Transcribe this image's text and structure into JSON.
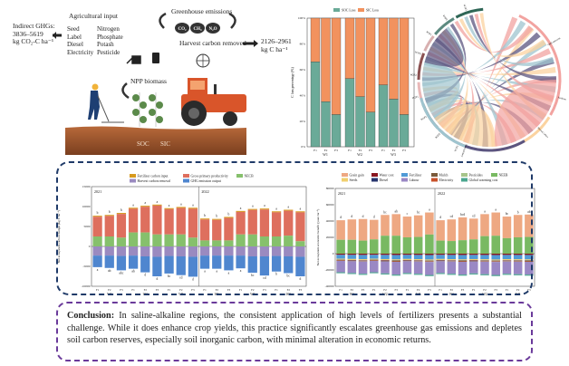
{
  "illustration": {
    "agri_input_title": "Agricultural input",
    "inputs_col1": [
      "Seed",
      "Label",
      "Diesel",
      "Electricity"
    ],
    "inputs_col2": [
      "Nitrogen",
      "Phosphate",
      "Potash",
      "Pesticide"
    ],
    "indirect_ghg": [
      "Indirect GHGs:",
      "3836–5619",
      "kg CO₂-C ha⁻¹"
    ],
    "greenhouse_title": "Greenhouse emissions",
    "gases": [
      "CO₂",
      "CH₄",
      "N₂O"
    ],
    "harvest_label": "Harvest carbon removed",
    "harvest_value": [
      "2126–2961",
      "kg C ha⁻¹"
    ],
    "npp_label": "NPP biomass",
    "soil_labels": [
      "SOC",
      "SIC"
    ],
    "colors": {
      "soil": "#a0572b",
      "tractor": "#d9552a",
      "leaf": "#5b8a4a",
      "farmer": "#1e3f73"
    }
  },
  "chart_data": [
    {
      "type": "bar",
      "stacked": "percent",
      "legend": [
        "SOC Loss",
        "SIC Loss"
      ],
      "legend_placement": "top",
      "ylabel": "C loss percentage (%)",
      "yticks": [
        "0%",
        "20%",
        "40%",
        "60%",
        "80%",
        "100%"
      ],
      "ylim": [
        0,
        100
      ],
      "groups": [
        "W1",
        "W2",
        "W3"
      ],
      "categories": [
        "F1",
        "F2",
        "F3"
      ],
      "series": [
        {
          "name": "SOC Loss",
          "color": "#6aaa98",
          "values": [
            [
              66,
              35,
              25
            ],
            [
              53,
              39,
              27
            ],
            [
              48,
              37,
              25
            ]
          ]
        },
        {
          "name": "SIC Loss",
          "color": "#f2925e",
          "values": [
            [
              34,
              65,
              75
            ],
            [
              47,
              61,
              73
            ],
            [
              52,
              63,
              75
            ]
          ]
        }
      ]
    },
    {
      "type": "bar",
      "stacked": true,
      "legend": [
        "Fertilizer carbon input",
        "Gross primary productivity",
        "NECB",
        "Harvest carbon removal",
        "GHG emission output"
      ],
      "legend_placement": "top",
      "ylabel": "Net ecosystem carbon budget (kg C ha⁻¹)",
      "yticks": [
        "-10000",
        "-5000",
        "0",
        "5000",
        "10000",
        "15000"
      ],
      "ylim": [
        -10000,
        15000
      ],
      "panels": [
        "2021",
        "2022"
      ],
      "groups": [
        "W1",
        "W2",
        "W3"
      ],
      "categories": [
        "F1",
        "F2",
        "F3"
      ],
      "colors": {
        "fert": "#d79a1e",
        "gpp": "#de6f5e",
        "necb": "#86c06c",
        "harvest": "#9a8ac0",
        "ghg": "#4f86cf"
      },
      "data": {
        "2021": {
          "positive": [
            7700,
            7900,
            8400,
            9700,
            10200,
            10500,
            9600,
            9900,
            9700
          ],
          "necb": [
            2500,
            2500,
            2200,
            3500,
            3500,
            3000,
            3000,
            3000,
            2200
          ],
          "harvest": [
            -2300,
            -2300,
            -2400,
            -2300,
            -2500,
            -2600,
            -2400,
            -2500,
            -2600
          ],
          "total_negative": [
            -5200,
            -5400,
            -6000,
            -5600,
            -6500,
            -7500,
            -6800,
            -7200,
            -7600
          ],
          "top_letters": [
            "b",
            "b",
            "b",
            "a",
            "a",
            "a",
            "a",
            "a",
            "a"
          ],
          "bottom_letters": [
            "a",
            "ab",
            "abc",
            "ab",
            "d",
            "d",
            "bc",
            "cd",
            "d"
          ]
        },
        "2022": {
          "positive": [
            7000,
            6900,
            7400,
            8900,
            9400,
            9500,
            8800,
            9200,
            8800
          ],
          "necb": [
            1500,
            1500,
            1500,
            3000,
            3000,
            2500,
            2500,
            2700,
            1300
          ],
          "harvest": [
            -2300,
            -2300,
            -2300,
            -2300,
            -2500,
            -2500,
            -2400,
            -2500,
            -2600
          ],
          "total_negative": [
            -5600,
            -5600,
            -6000,
            -5500,
            -6600,
            -7300,
            -6300,
            -6700,
            -7500
          ],
          "top_letters": [
            "b",
            "b",
            "b",
            "a",
            "a",
            "a",
            "a",
            "a",
            "a"
          ],
          "bottom_letters": [
            "a",
            "a",
            "a",
            "a",
            "bc",
            "cd",
            "b",
            "bc",
            "d"
          ]
        }
      }
    },
    {
      "type": "bar",
      "stacked": true,
      "legend": [
        "Grain gain",
        "Water cost",
        "Fertilizer",
        "Mulch",
        "Pesticides",
        "NEEB",
        "Seeds",
        "Diesel",
        "Labour",
        "Electricity",
        "Global warming cost"
      ],
      "legend_placement": "top",
      "ylabel": "Net ecosystem economic benefit (yuan ha⁻¹)",
      "yticks": [
        "-40000",
        "-20000",
        "0",
        "20000",
        "40000",
        "60000",
        "80000"
      ],
      "ylim": [
        -40000,
        80000
      ],
      "panels": [
        "2021",
        "2022"
      ],
      "groups": [
        "W1",
        "W2",
        "W3"
      ],
      "categories": [
        "F1",
        "F2",
        "F3"
      ],
      "colors": {
        "grain": "#eea882",
        "water": "#8a1620",
        "fertilizer": "#4f9ad6",
        "mulch": "#7a5a3a",
        "pesticides": "#a7c48a",
        "neeb": "#79b962",
        "seeds": "#f0cf6e",
        "diesel": "#27356e",
        "labour": "#9a88c4",
        "electricity": "#c8512a",
        "gwc": "#4aa68f"
      },
      "data": {
        "2021": {
          "positive": [
            41000,
            42000,
            42500,
            41500,
            47500,
            48500,
            45500,
            47000,
            50500
          ],
          "neeb": [
            17000,
            17000,
            16000,
            17500,
            22000,
            22000,
            20000,
            20500,
            23500
          ],
          "negative": [
            -24000,
            -25000,
            -26000,
            -24000,
            -25500,
            -27000,
            -25000,
            -26000,
            -27500
          ],
          "letters": [
            "d",
            "d",
            "d",
            "d",
            "bc",
            "ab",
            "c",
            "bc",
            "a"
          ]
        },
        "2022": {
          "positive": [
            41000,
            42000,
            44500,
            43000,
            48500,
            50500,
            45500,
            47500,
            48000
          ],
          "neeb": [
            16000,
            15500,
            16500,
            17500,
            21500,
            22000,
            19000,
            20000,
            20500
          ],
          "negative": [
            -25000,
            -26000,
            -27000,
            -25500,
            -26500,
            -27500,
            -26000,
            -26500,
            -27000
          ],
          "letters": [
            "d",
            "cd",
            "bcd",
            "cd",
            "a",
            "a",
            "bc",
            "b",
            "ab"
          ]
        }
      }
    }
  ],
  "chord": {
    "segments": [
      "W1F1",
      "W1F2",
      "W1F3",
      "W2F1",
      "W2F2",
      "W2F3",
      "W3F1",
      "W3F2",
      "W3F3",
      "GHG emission",
      "Harvest carbon",
      "Gross primary",
      "Fertilizer"
    ],
    "colors": [
      "#f2a3a0",
      "#fbd3a0",
      "#9fc4cf",
      "#5c5580"
    ]
  },
  "conclusion": {
    "label": "Conclusion:",
    "text": " In saline-alkaline regions, the consistent application of high levels of fertilizers presents a substantial challenge. While it does enhance crop yields, this practice significantly escalates greenhouse gas emissions and depletes soil carbon reserves, especially soil inorganic carbon, with minimal alteration in economic returns."
  }
}
